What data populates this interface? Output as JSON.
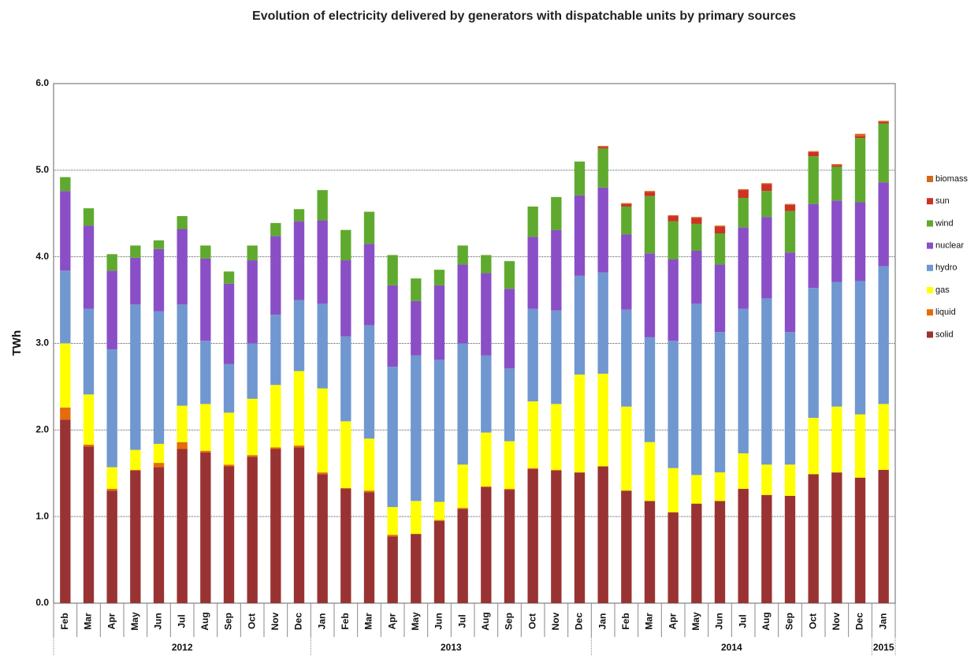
{
  "chart_data": {
    "type": "stacked_bar",
    "title": "Evolution of electricity delivered by generators with dispatchable units by primary sources",
    "y_label": "TWh",
    "category_groups": [
      {
        "name": "2012",
        "categories": [
          "Feb",
          "Mar",
          "Apr",
          "May",
          "Jun",
          "Jul",
          "Aug",
          "Sep",
          "Oct",
          "Nov",
          "Dec"
        ]
      },
      {
        "name": "2013",
        "categories": [
          "Jan",
          "Feb",
          "Mar",
          "Apr",
          "May",
          "Jun",
          "Jul",
          "Aug",
          "Sep",
          "Oct",
          "Nov",
          "Dec"
        ]
      },
      {
        "name": "2014",
        "categories": [
          "Jan",
          "Feb",
          "Mar",
          "Apr",
          "May",
          "Jun",
          "Jul",
          "Aug",
          "Sep",
          "Oct",
          "Nov",
          "Dec"
        ]
      },
      {
        "name": "2015",
        "categories": [
          "Jan"
        ]
      }
    ],
    "series": [
      {
        "name": "solid",
        "color": "#993333",
        "values": [
          2.12,
          1.81,
          1.3,
          1.53,
          1.57,
          1.78,
          1.74,
          1.58,
          1.69,
          1.78,
          1.8,
          1.49,
          1.32,
          1.28,
          0.77,
          0.8,
          0.95,
          1.09,
          1.34,
          1.31,
          1.55,
          1.53,
          1.51,
          1.58,
          1.3,
          1.18,
          1.05,
          1.15,
          1.18,
          1.32,
          1.25,
          1.24,
          1.49,
          1.51,
          1.45,
          1.54
        ]
      },
      {
        "name": "liquid",
        "color": "#E46C0A",
        "values": [
          0.14,
          0.02,
          0.02,
          0.01,
          0.05,
          0.08,
          0.02,
          0.02,
          0.02,
          0.02,
          0.02,
          0.02,
          0.01,
          0.02,
          0.02,
          0,
          0.01,
          0.01,
          0.01,
          0.01,
          0.01,
          0.01,
          0,
          0,
          0,
          0,
          0,
          0,
          0,
          0,
          0,
          0,
          0,
          0,
          0,
          0
        ]
      },
      {
        "name": "gas",
        "color": "#FFFF00",
        "values": [
          0.74,
          0.58,
          0.25,
          0.23,
          0.22,
          0.42,
          0.54,
          0.6,
          0.65,
          0.72,
          0.86,
          0.97,
          0.77,
          0.6,
          0.32,
          0.38,
          0.21,
          0.5,
          0.62,
          0.55,
          0.77,
          0.76,
          1.13,
          1.07,
          0.97,
          0.68,
          0.51,
          0.33,
          0.33,
          0.41,
          0.35,
          0.36,
          0.65,
          0.76,
          0.73,
          0.76
        ]
      },
      {
        "name": "hydro",
        "color": "#7097CF",
        "values": [
          0.84,
          0.99,
          1.36,
          1.68,
          1.53,
          1.17,
          0.73,
          0.56,
          0.64,
          0.81,
          0.82,
          0.98,
          0.98,
          1.31,
          1.62,
          1.68,
          1.64,
          1.4,
          0.89,
          0.84,
          1.07,
          1.08,
          1.14,
          1.17,
          1.12,
          1.21,
          1.47,
          1.98,
          1.62,
          1.67,
          1.92,
          1.53,
          1.5,
          1.44,
          1.54,
          1.59
        ]
      },
      {
        "name": "nuclear",
        "color": "#8A4FC6",
        "values": [
          0.92,
          0.96,
          0.91,
          0.54,
          0.72,
          0.87,
          0.95,
          0.93,
          0.96,
          0.91,
          0.91,
          0.96,
          0.88,
          0.94,
          0.94,
          0.63,
          0.86,
          0.91,
          0.95,
          0.92,
          0.83,
          0.93,
          0.93,
          0.98,
          0.87,
          0.97,
          0.94,
          0.61,
          0.78,
          0.94,
          0.94,
          0.92,
          0.97,
          0.94,
          0.91,
          0.97
        ]
      },
      {
        "name": "wind",
        "color": "#5FAA2E",
        "values": [
          0.16,
          0.2,
          0.19,
          0.14,
          0.1,
          0.15,
          0.15,
          0.14,
          0.17,
          0.15,
          0.14,
          0.35,
          0.35,
          0.37,
          0.35,
          0.26,
          0.18,
          0.22,
          0.21,
          0.32,
          0.35,
          0.38,
          0.39,
          0.45,
          0.32,
          0.66,
          0.44,
          0.31,
          0.36,
          0.34,
          0.3,
          0.48,
          0.55,
          0.39,
          0.74,
          0.68
        ]
      },
      {
        "name": "sun",
        "color": "#CC3322",
        "values": [
          0,
          0,
          0,
          0,
          0,
          0,
          0,
          0,
          0,
          0,
          0,
          0,
          0,
          0,
          0,
          0,
          0,
          0,
          0,
          0,
          0,
          0,
          0,
          0.02,
          0.03,
          0.05,
          0.06,
          0.07,
          0.08,
          0.09,
          0.08,
          0.07,
          0.05,
          0.02,
          0.02,
          0.02
        ]
      },
      {
        "name": "biomass",
        "color": "#D2691E",
        "values": [
          0,
          0,
          0,
          0,
          0,
          0,
          0,
          0,
          0,
          0,
          0,
          0,
          0,
          0,
          0,
          0,
          0,
          0,
          0,
          0,
          0,
          0,
          0,
          0.01,
          0.01,
          0.01,
          0.01,
          0.01,
          0.01,
          0.01,
          0.01,
          0.01,
          0.01,
          0.01,
          0.03,
          0.01
        ]
      }
    ],
    "ylim": [
      0,
      6
    ],
    "yticks": [
      {
        "value": 0,
        "label": "0.0"
      },
      {
        "value": 1,
        "label": "1.0"
      },
      {
        "value": 2,
        "label": "2.0"
      },
      {
        "value": 3,
        "label": "3.0"
      },
      {
        "value": 4,
        "label": "4.0"
      },
      {
        "value": 5,
        "label": "5.0"
      },
      {
        "value": 6,
        "label": "6.0"
      }
    ],
    "grid": true,
    "legend": "right"
  }
}
